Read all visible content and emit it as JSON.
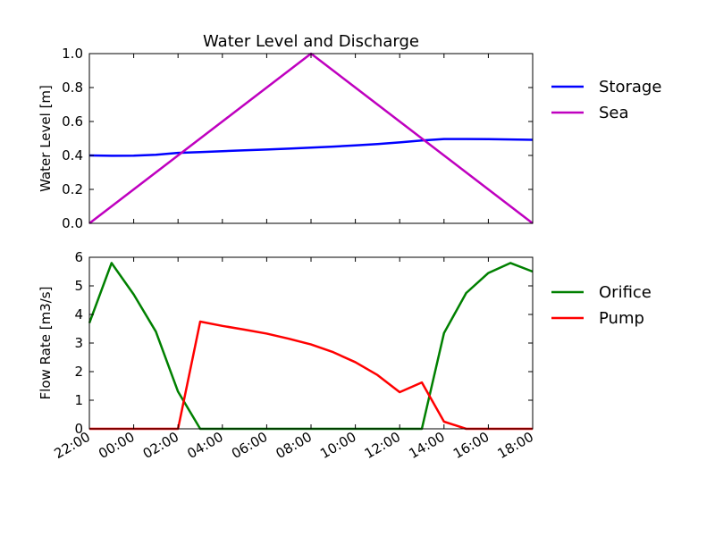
{
  "chart_data": [
    {
      "type": "line",
      "title": "Water Level and Discharge",
      "xlabel": "",
      "ylabel": "Water Level [m]",
      "xlim": [
        "22:00",
        "18:00"
      ],
      "ylim": [
        0,
        1.0
      ],
      "yticks": [
        "0.0",
        "0.2",
        "0.4",
        "0.6",
        "0.8",
        "1.0"
      ],
      "grid": false,
      "legend_position": "outside-right",
      "x": [
        "22:00",
        "23:00",
        "00:00",
        "01:00",
        "02:00",
        "03:00",
        "04:00",
        "05:00",
        "06:00",
        "07:00",
        "08:00",
        "09:00",
        "10:00",
        "11:00",
        "12:00",
        "13:00",
        "14:00",
        "15:00",
        "16:00",
        "17:00",
        "18:00"
      ],
      "series": [
        {
          "name": "Storage",
          "color": "#0000ff",
          "values": [
            0.4,
            0.398,
            0.399,
            0.404,
            0.415,
            0.42,
            0.425,
            0.43,
            0.435,
            0.44,
            0.446,
            0.452,
            0.459,
            0.467,
            0.477,
            0.488,
            0.497,
            0.497,
            0.496,
            0.494,
            0.492
          ]
        },
        {
          "name": "Sea",
          "color": "#bf00bf",
          "values": [
            0.0,
            0.1,
            0.2,
            0.3,
            0.4,
            0.5,
            0.6,
            0.7,
            0.8,
            0.9,
            1.0,
            0.9,
            0.8,
            0.7,
            0.6,
            0.5,
            0.4,
            0.3,
            0.2,
            0.1,
            0.0
          ]
        }
      ]
    },
    {
      "type": "line",
      "title": "",
      "xlabel": "",
      "ylabel": "Flow Rate [m3/s]",
      "xlim": [
        "22:00",
        "18:00"
      ],
      "ylim": [
        0,
        6
      ],
      "yticks": [
        "0",
        "1",
        "2",
        "3",
        "4",
        "5",
        "6"
      ],
      "xticks": [
        "22:00",
        "00:00",
        "02:00",
        "04:00",
        "06:00",
        "08:00",
        "10:00",
        "12:00",
        "14:00",
        "16:00",
        "18:00"
      ],
      "grid": false,
      "legend_position": "outside-right",
      "x": [
        "22:00",
        "23:00",
        "00:00",
        "01:00",
        "02:00",
        "03:00",
        "04:00",
        "05:00",
        "06:00",
        "07:00",
        "08:00",
        "09:00",
        "10:00",
        "11:00",
        "12:00",
        "13:00",
        "14:00",
        "15:00",
        "16:00",
        "17:00",
        "18:00"
      ],
      "series": [
        {
          "name": "Orifice",
          "color": "#008000",
          "values": [
            3.7,
            5.8,
            4.7,
            3.4,
            1.3,
            0.0,
            0.0,
            0.0,
            0.0,
            0.0,
            0.0,
            0.0,
            0.0,
            0.0,
            0.0,
            0.0,
            3.35,
            4.75,
            5.45,
            5.8,
            5.5
          ]
        },
        {
          "name": "Pump",
          "color": "#ff0000",
          "values": [
            0.0,
            0.0,
            0.0,
            0.0,
            0.0,
            3.75,
            3.6,
            3.47,
            3.33,
            3.15,
            2.95,
            2.68,
            2.33,
            1.88,
            1.28,
            1.62,
            0.25,
            0.0,
            0.0,
            0.0,
            0.0
          ]
        }
      ]
    }
  ]
}
